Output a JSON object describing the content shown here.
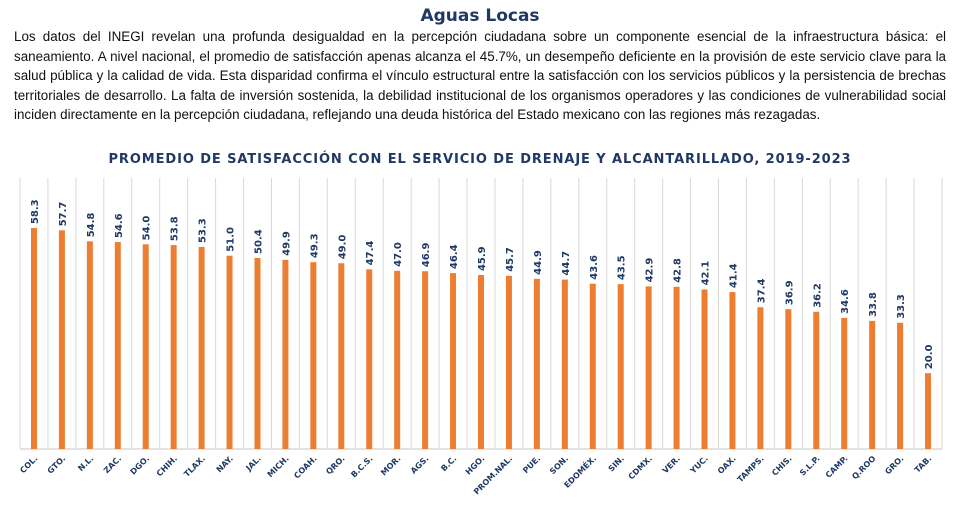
{
  "header": {
    "title": "Aguas Locas"
  },
  "paragraph": "Los datos del INEGI revelan una profunda desigualdad en la percepción ciudadana sobre un componente esencial de la infraestructura básica: el saneamiento. A nivel nacional, el promedio de satisfacción apenas alcanza el 45.7%, un desempeño deficiente en la provisión de este servicio clave para la salud pública y la calidad de vida. Esta disparidad confirma el vínculo estructural entre la satisfacción con los servicios públicos y la persistencia de brechas territoriales de desarrollo. La falta de inversión sostenida, la debilidad institucional de los organismos operadores y las condiciones de vulnerabilidad social inciden directamente en la percepción ciudadana, reflejando una deuda histórica del Estado mexicano con las regiones más rezagadas.",
  "chart_data": {
    "type": "bar",
    "title": "PROMEDIO DE SATISFACCIÓN CON EL SERVICIO DE DRENAJE Y ALCANTARILLADO, 2019-2023",
    "categories": [
      "COL.",
      "GTO.",
      "N.L.",
      "ZAC.",
      "DGO.",
      "CHIH.",
      "TLAX.",
      "NAY.",
      "JAL.",
      "MICH.",
      "COAH.",
      "QRO.",
      "B.C.S.",
      "MOR.",
      "AGS.",
      "B.C.",
      "HGO.",
      "PROM.NAL.",
      "PUE.",
      "SON.",
      "EDOMÉX.",
      "SIN.",
      "CDMX.",
      "VER.",
      "YUC.",
      "OAX.",
      "TAMPS.",
      "CHIS.",
      "S.L.P.",
      "CAMP.",
      "Q.ROO",
      "GRO.",
      "TAB."
    ],
    "values": [
      58.3,
      57.7,
      54.8,
      54.6,
      54.0,
      53.8,
      53.3,
      51.0,
      50.4,
      49.9,
      49.3,
      49.0,
      47.4,
      47.0,
      46.9,
      46.4,
      45.9,
      45.7,
      44.9,
      44.7,
      43.6,
      43.5,
      42.9,
      42.8,
      42.1,
      41.4,
      37.4,
      36.9,
      36.2,
      34.6,
      33.8,
      33.3,
      20.0
    ],
    "xlabel": "",
    "ylabel": "",
    "ylim": [
      0,
      71.5
    ],
    "grid": "vertical",
    "legend": "none",
    "colors": {
      "bar": "#ed7d31",
      "label": "#1f3864",
      "grid": "#d9d9d9"
    }
  }
}
